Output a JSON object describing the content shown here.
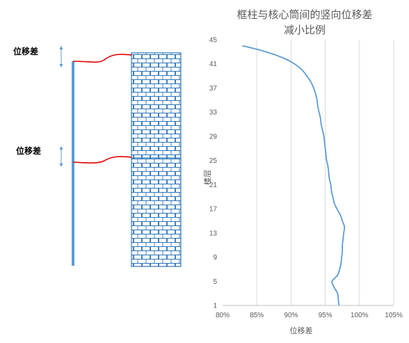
{
  "diagram": {
    "label_top": "位移差",
    "label_mid": "位移差",
    "colors": {
      "column": "#5b9bd5",
      "core": "#2e75b6",
      "link": "#e00000",
      "arrow": "#5b9bd5"
    }
  },
  "chart_data": {
    "type": "line",
    "title_line1": "框柱与核心筒间的竖向位移差",
    "title_line2": "减小比例",
    "xlabel": "位移差",
    "ylabel": "楼层",
    "xlim": [
      0.8,
      1.05
    ],
    "ylim": [
      1,
      45
    ],
    "x_ticks": [
      0.8,
      0.85,
      0.9,
      0.95,
      1.0,
      1.05
    ],
    "x_tick_labels": [
      "80%",
      "85%",
      "90%",
      "95%",
      "100%",
      "105%"
    ],
    "y_ticks": [
      1,
      5,
      9,
      13,
      17,
      21,
      25,
      29,
      33,
      37,
      41,
      45
    ],
    "y_tick_labels": [
      "1",
      "5",
      "9",
      "13",
      "17",
      "21",
      "25",
      "29",
      "33",
      "37",
      "41",
      "45"
    ],
    "grid": "vertical",
    "line_color": "#5b9bd5",
    "series": [
      {
        "name": "",
        "points": [
          [
            0.97,
            1
          ],
          [
            0.969,
            2
          ],
          [
            0.968,
            3
          ],
          [
            0.963,
            4
          ],
          [
            0.96,
            5
          ],
          [
            0.968,
            6
          ],
          [
            0.971,
            7
          ],
          [
            0.973,
            8
          ],
          [
            0.974,
            9
          ],
          [
            0.975,
            10
          ],
          [
            0.975,
            11
          ],
          [
            0.976,
            12
          ],
          [
            0.977,
            13
          ],
          [
            0.978,
            14
          ],
          [
            0.975,
            15
          ],
          [
            0.972,
            16
          ],
          [
            0.967,
            17
          ],
          [
            0.963,
            18
          ],
          [
            0.961,
            19
          ],
          [
            0.959,
            20
          ],
          [
            0.958,
            21
          ],
          [
            0.956,
            22
          ],
          [
            0.955,
            23
          ],
          [
            0.954,
            24
          ],
          [
            0.952,
            25
          ],
          [
            0.951,
            26
          ],
          [
            0.95,
            27
          ],
          [
            0.949,
            28
          ],
          [
            0.948,
            29
          ],
          [
            0.946,
            30
          ],
          [
            0.944,
            31
          ],
          [
            0.943,
            32
          ],
          [
            0.941,
            33
          ],
          [
            0.939,
            34
          ],
          [
            0.938,
            35
          ],
          [
            0.936,
            36
          ],
          [
            0.933,
            37
          ],
          [
            0.929,
            38
          ],
          [
            0.923,
            39
          ],
          [
            0.916,
            40
          ],
          [
            0.905,
            41
          ],
          [
            0.888,
            42
          ],
          [
            0.863,
            43
          ],
          [
            0.829,
            44
          ]
        ]
      }
    ]
  }
}
